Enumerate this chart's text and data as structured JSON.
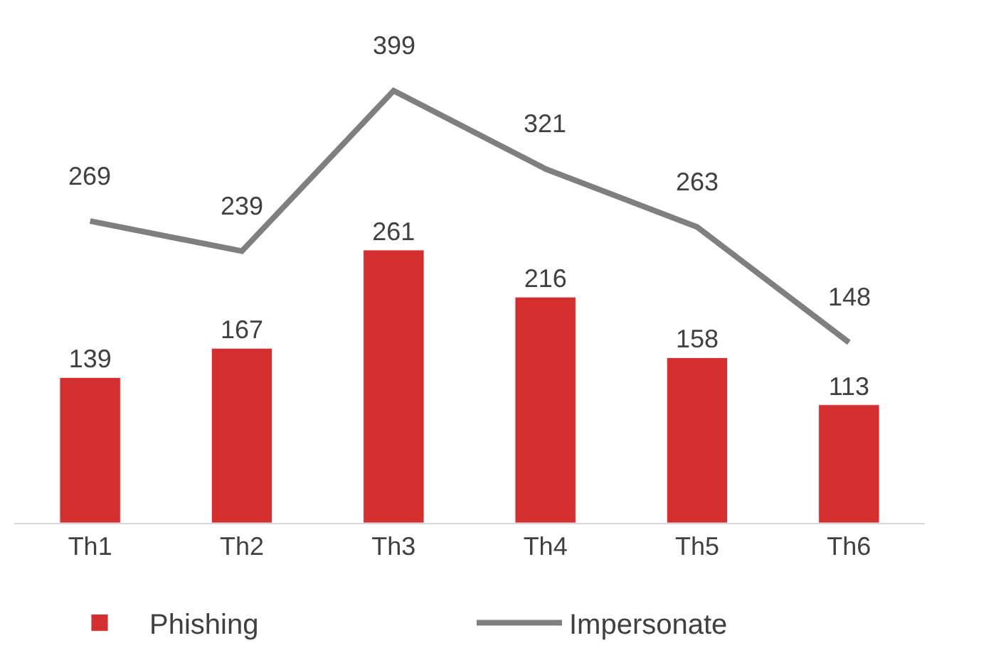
{
  "chart_data": {
    "type": "bar",
    "categories": [
      "Th1",
      "Th2",
      "Th3",
      "Th4",
      "Th5",
      "Th6"
    ],
    "series": [
      {
        "name": "Phishing",
        "color": "#d42f2f",
        "values": [
          139,
          167,
          261,
          216,
          158,
          113
        ]
      },
      {
        "name": "Impersonate",
        "type": "line",
        "axis": "y2",
        "color": "#7f7f7f",
        "values": [
          269,
          239,
          399,
          321,
          263,
          148
        ],
        "marker": "none"
      }
    ],
    "data_labels": true,
    "legend": "bottom",
    "tick_labels": "x"
  }
}
